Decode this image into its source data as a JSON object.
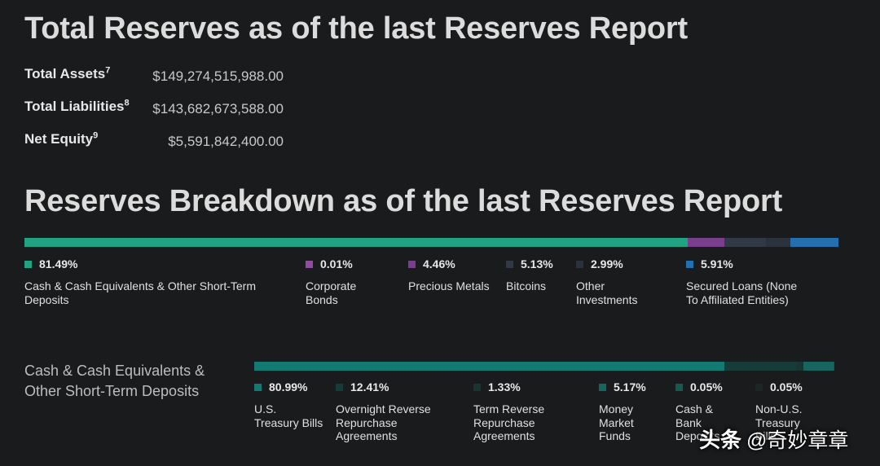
{
  "title_total": "Total Reserves as of the last Reserves Report",
  "summary": [
    {
      "label": "Total Assets",
      "note": "7",
      "value": "$149,274,515,988.00"
    },
    {
      "label": "Total Liabilities",
      "note": "8",
      "value": "$143,682,673,588.00"
    },
    {
      "label": "Net Equity",
      "note": "9",
      "value": "$5,591,842,400.00"
    }
  ],
  "title_breakdown": "Reserves Breakdown as of the last Reserves Report",
  "reserves": [
    {
      "pct_label": "81.49%",
      "value": 81.49,
      "label": "Cash & Cash Equivalents & Other Short-Term Deposits",
      "color": "#1fa383"
    },
    {
      "pct_label": "0.01%",
      "value": 0.01,
      "label": "Corporate Bonds",
      "color": "#8e4d9e"
    },
    {
      "pct_label": "4.46%",
      "value": 4.46,
      "label": "Precious Metals",
      "color": "#7a3f8c"
    },
    {
      "pct_label": "5.13%",
      "value": 5.13,
      "label": "Bitcoins",
      "color": "#313946"
    },
    {
      "pct_label": "2.99%",
      "value": 2.99,
      "label": "Other Investments",
      "color": "#2b323d"
    },
    {
      "pct_label": "5.91%",
      "value": 5.91,
      "label": "Secured Loans (None To Affiliated Entities)",
      "color": "#246fad"
    }
  ],
  "cash_heading": "Cash & Cash Equivalents & Other Short-Term Deposits",
  "cash": [
    {
      "pct_label": "80.99%",
      "value": 80.99,
      "label": "U.S. Treasury Bills",
      "color": "#137a72"
    },
    {
      "pct_label": "12.41%",
      "value": 12.41,
      "label": "Overnight Reverse Repurchase Agreements",
      "color": "#163b38"
    },
    {
      "pct_label": "1.33%",
      "value": 1.33,
      "label": "Term Reverse Repurchase Agreements",
      "color": "#183532"
    },
    {
      "pct_label": "5.17%",
      "value": 5.17,
      "label": "Money Market Funds",
      "color": "#16665f"
    },
    {
      "pct_label": "0.05%",
      "value": 0.05,
      "label": "Cash & Bank Deposits",
      "color": "#155a52"
    },
    {
      "pct_label": "0.05%",
      "value": 0.05,
      "label": "Non-U.S. Treasury Bills",
      "color": "#1d2624"
    }
  ],
  "watermark": {
    "brand": "头条",
    "handle": "@奇妙章章"
  }
}
